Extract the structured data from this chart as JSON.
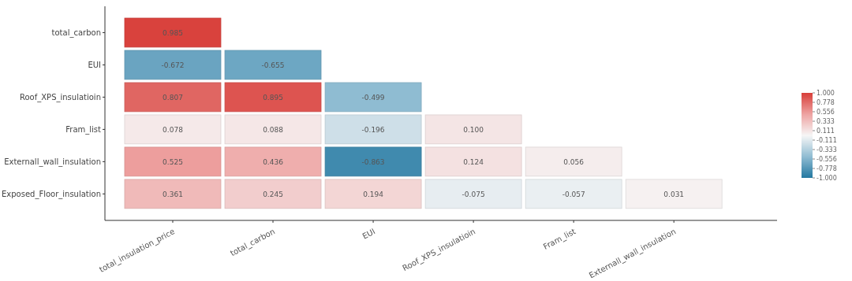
{
  "chart_data": {
    "type": "heatmap",
    "categories": [
      "total_insulation_price",
      "total_carbon",
      "EUI",
      "Roof_XPS_insulatioin",
      "Fram_list",
      "Externall_wall_insulation"
    ],
    "y_categories": [
      "total_carbon",
      "EUI",
      "Roof_XPS_insulatioin",
      "Fram_list",
      "Externall_wall_insulation",
      "Exposed_Floor_insulation"
    ],
    "cells": [
      [
        0.985,
        null,
        null,
        null,
        null,
        null
      ],
      [
        -0.672,
        -0.655,
        null,
        null,
        null,
        null
      ],
      [
        0.807,
        0.895,
        -0.499,
        null,
        null,
        null
      ],
      [
        0.078,
        0.088,
        -0.196,
        0.1,
        null,
        null
      ],
      [
        0.525,
        0.436,
        -0.863,
        0.124,
        0.056,
        null
      ],
      [
        0.361,
        0.245,
        0.194,
        -0.075,
        -0.057,
        0.031
      ]
    ],
    "cell_labels": [
      [
        "0.985",
        null,
        null,
        null,
        null,
        null
      ],
      [
        "-0.672",
        "-0.655",
        null,
        null,
        null,
        null
      ],
      [
        "0.807",
        "0.895",
        "-0.499",
        null,
        null,
        null
      ],
      [
        "0.078",
        "0.088",
        "-0.196",
        "0.100",
        null,
        null
      ],
      [
        "0.525",
        "0.436",
        "-0.863",
        "0.124",
        "0.056",
        null
      ],
      [
        "0.361",
        "0.245",
        "0.194",
        "-0.075",
        "-0.057",
        "0.031"
      ]
    ],
    "clim": [
      -1,
      1
    ],
    "cticks": [
      {
        "value": 1,
        "label": "1.000"
      },
      {
        "value": 0.778,
        "label": "0.778"
      },
      {
        "value": 0.556,
        "label": "0.556"
      },
      {
        "value": 0.333,
        "label": "0.333"
      },
      {
        "value": 0.111,
        "label": "0.111"
      },
      {
        "value": -0.111,
        "label": "-0.111"
      },
      {
        "value": -0.333,
        "label": "-0.333"
      },
      {
        "value": -0.556,
        "label": "-0.556"
      },
      {
        "value": -0.778,
        "label": "-0.778"
      },
      {
        "value": -1,
        "label": "-1.000"
      }
    ]
  }
}
